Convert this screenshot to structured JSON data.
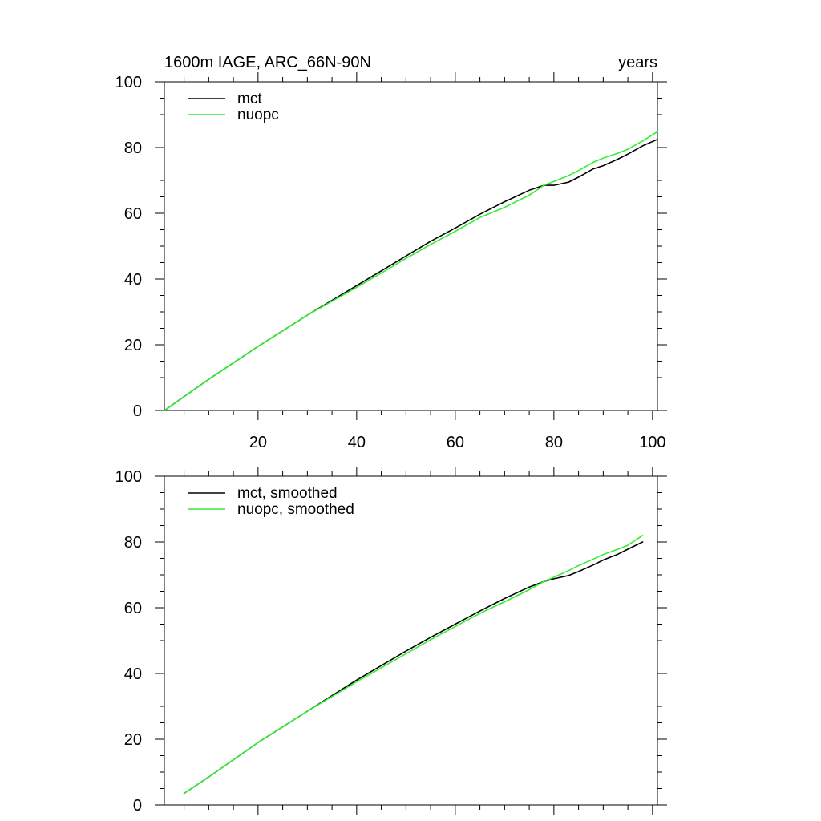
{
  "chart_data": [
    {
      "type": "line",
      "title": "1600m IAGE, ARC_66N-90N",
      "units": "years",
      "xlim": [
        1,
        101
      ],
      "ylim": [
        0,
        100
      ],
      "x_ticks": [
        20,
        40,
        60,
        80,
        100
      ],
      "y_ticks": [
        0,
        20,
        40,
        60,
        80,
        100
      ],
      "grid": false,
      "legend_position": "top-left",
      "series": [
        {
          "name": "mct",
          "color": "#000000",
          "x": [
            1,
            10,
            20,
            30,
            40,
            45,
            50,
            55,
            60,
            65,
            70,
            75,
            78,
            80,
            83,
            85,
            88,
            90,
            93,
            95,
            98,
            101
          ],
          "values": [
            0,
            9.5,
            19.5,
            29,
            38,
            42.5,
            47,
            51.5,
            55.5,
            59.7,
            63.5,
            67,
            68.5,
            68.5,
            69.5,
            71,
            73.5,
            74.5,
            76.5,
            78,
            80.5,
            82.5
          ]
        },
        {
          "name": "nuopc",
          "color": "#33ee33",
          "x": [
            1,
            10,
            20,
            30,
            40,
            45,
            50,
            55,
            60,
            65,
            70,
            75,
            78,
            80,
            83,
            85,
            88,
            90,
            93,
            95,
            98,
            101
          ],
          "values": [
            0,
            9.5,
            19.5,
            29,
            37.5,
            41.8,
            46.3,
            50.5,
            54.5,
            58.7,
            61.8,
            65.5,
            68.5,
            69.7,
            71.5,
            73,
            75.5,
            76.8,
            78.3,
            79.5,
            82,
            84.8
          ]
        }
      ]
    },
    {
      "type": "line",
      "title": "",
      "units": "",
      "xlim": [
        1,
        101
      ],
      "ylim": [
        0,
        100
      ],
      "x_ticks": [
        20,
        40,
        60,
        80,
        100
      ],
      "y_ticks": [
        0,
        20,
        40,
        60,
        80,
        100
      ],
      "grid": false,
      "legend_position": "top-left",
      "series": [
        {
          "name": "mct, smoothed",
          "color": "#000000",
          "x": [
            5,
            10,
            20,
            30,
            40,
            50,
            55,
            60,
            65,
            70,
            75,
            78,
            80,
            83,
            85,
            88,
            90,
            93,
            95,
            98
          ],
          "values": [
            3.5,
            8.5,
            19,
            28.5,
            38,
            46.8,
            51,
            55,
            59,
            62.8,
            66.3,
            68,
            68.8,
            69.8,
            71,
            73,
            74.5,
            76.3,
            77.8,
            80
          ]
        },
        {
          "name": "nuopc, smoothed",
          "color": "#33ee33",
          "x": [
            5,
            10,
            20,
            30,
            40,
            50,
            55,
            60,
            65,
            70,
            75,
            78,
            80,
            83,
            85,
            88,
            90,
            93,
            95,
            98
          ],
          "values": [
            3.5,
            8.5,
            19,
            28.5,
            37.5,
            46,
            50.3,
            54.3,
            58.3,
            61.8,
            65.5,
            68,
            69.3,
            71.3,
            72.8,
            74.8,
            76.2,
            77.8,
            79,
            82
          ]
        }
      ]
    }
  ]
}
